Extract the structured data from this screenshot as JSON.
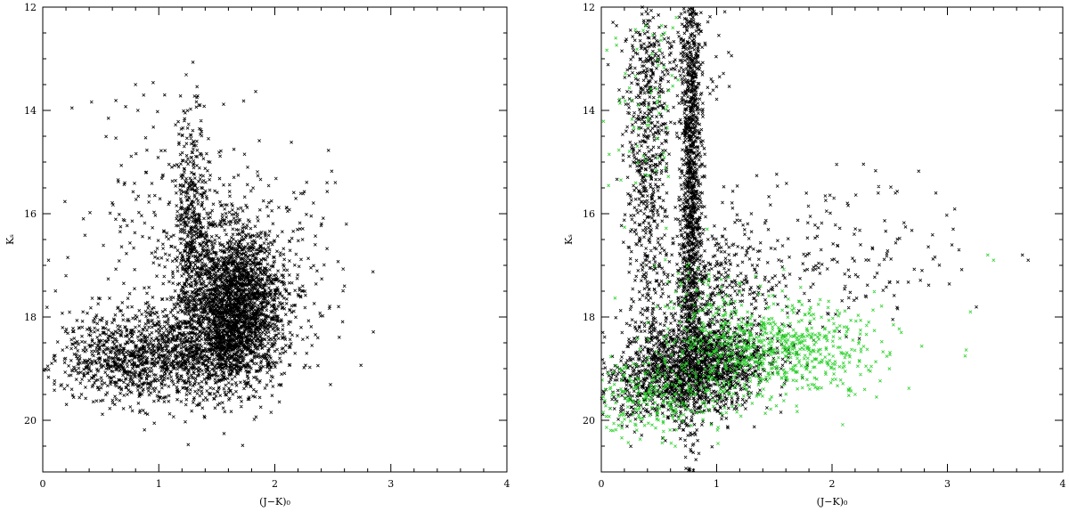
{
  "colors": {
    "main": "#000000",
    "highlight": "#2bd12b"
  },
  "chart_data": [
    {
      "type": "scatter",
      "xlabel": "(J−K)₀",
      "ylabel": "Kₛ",
      "xlim": [
        0,
        4
      ],
      "ylim": [
        21,
        12
      ],
      "y_inverted": true,
      "x_major_ticks": [
        0,
        1,
        2,
        3,
        4
      ],
      "y_major_ticks": [
        12,
        14,
        16,
        18,
        20
      ],
      "x_tick_labels": [
        "0",
        "1",
        "2",
        "3",
        "4"
      ],
      "y_tick_labels": [
        "12",
        "14",
        "16",
        "18",
        "20"
      ],
      "grid": false,
      "marker": "x",
      "series": [
        {
          "color": "#000000",
          "clusters": [
            {
              "cx": 1.65,
              "cy": 17.8,
              "sx": 0.2,
              "sy": 0.75,
              "n": 2400
            },
            {
              "cx": 1.05,
              "cy": 18.7,
              "sx": 0.42,
              "sy": 0.45,
              "n": 1300
            },
            {
              "cx": 1.28,
              "cy": 16.3,
              "sx": 0.07,
              "sy": 1.1,
              "n": 450
            },
            {
              "cx": 1.7,
              "cy": 17.2,
              "sx": 0.42,
              "sy": 1.0,
              "n": 500
            },
            {
              "cx": 0.6,
              "cy": 18.9,
              "sx": 0.3,
              "sy": 0.35,
              "n": 200
            },
            {
              "cx": 1.0,
              "cy": 15.5,
              "sx": 0.35,
              "sy": 0.9,
              "n": 120
            }
          ],
          "points": [
            [
              0.8,
              13.5
            ],
            [
              1.05,
              13.7
            ],
            [
              0.82,
              14.0
            ],
            [
              1.22,
              14.2
            ],
            [
              2.45,
              15.4
            ],
            [
              0.35,
              16.1
            ],
            [
              0.05,
              16.9
            ],
            [
              0.2,
              17.2
            ],
            [
              2.6,
              17.4
            ],
            [
              2.55,
              17.8
            ],
            [
              0.1,
              19.3
            ],
            [
              0.25,
              19.4
            ]
          ]
        }
      ]
    },
    {
      "type": "scatter",
      "xlabel": "(J−K)₀",
      "ylabel": "Kₛ",
      "xlim": [
        0,
        4
      ],
      "ylim": [
        21,
        12
      ],
      "y_inverted": true,
      "x_major_ticks": [
        0,
        1,
        2,
        3,
        4
      ],
      "y_major_ticks": [
        12,
        14,
        16,
        18,
        20
      ],
      "x_tick_labels": [
        "0",
        "1",
        "2",
        "3",
        "4"
      ],
      "y_tick_labels": [
        "12",
        "14",
        "16",
        "18",
        "20"
      ],
      "grid": false,
      "marker": "x",
      "series": [
        {
          "color": "#000000",
          "clusters": [
            {
              "cx": 0.78,
              "cy": 15.3,
              "sx": 0.045,
              "sy": 2.2,
              "n": 1300
            },
            {
              "cx": 0.4,
              "cy": 15.0,
              "sx": 0.09,
              "sy": 1.8,
              "n": 650
            },
            {
              "cx": 0.85,
              "cy": 18.9,
              "sx": 0.3,
              "sy": 0.45,
              "n": 1500
            },
            {
              "cx": 0.5,
              "cy": 19.3,
              "sx": 0.3,
              "sy": 0.4,
              "n": 450
            },
            {
              "cx": 1.0,
              "cy": 17.4,
              "sx": 0.25,
              "sy": 0.55,
              "n": 320
            },
            {
              "cx": 1.8,
              "cy": 16.8,
              "sx": 0.6,
              "sy": 0.75,
              "n": 200
            },
            {
              "cx": 0.6,
              "cy": 13.0,
              "sx": 0.25,
              "sy": 0.45,
              "n": 120
            }
          ],
          "points": [
            [
              2.9,
              15.6
            ],
            [
              3.05,
              16.3
            ],
            [
              3.1,
              16.7
            ],
            [
              3.65,
              16.8
            ],
            [
              3.7,
              16.9
            ],
            [
              2.78,
              17.1
            ],
            [
              2.4,
              15.6
            ],
            [
              2.55,
              15.6
            ]
          ]
        },
        {
          "color": "#2bd12b",
          "clusters": [
            {
              "cx": 1.55,
              "cy": 18.6,
              "sx": 0.45,
              "sy": 0.45,
              "n": 650
            },
            {
              "cx": 0.5,
              "cy": 19.6,
              "sx": 0.35,
              "sy": 0.35,
              "n": 250
            },
            {
              "cx": 0.4,
              "cy": 13.8,
              "sx": 0.18,
              "sy": 1.0,
              "n": 70
            },
            {
              "cx": 0.9,
              "cy": 18.3,
              "sx": 0.25,
              "sy": 0.7,
              "n": 150
            }
          ],
          "points": [
            [
              0.65,
              12.2
            ],
            [
              0.62,
              12.4
            ],
            [
              0.55,
              12.5
            ],
            [
              3.35,
              16.8
            ],
            [
              3.4,
              16.9
            ],
            [
              3.2,
              17.9
            ],
            [
              2.6,
              18.3
            ],
            [
              2.2,
              19.5
            ],
            [
              0.1,
              20.2
            ],
            [
              0.15,
              20.1
            ]
          ]
        }
      ]
    }
  ]
}
